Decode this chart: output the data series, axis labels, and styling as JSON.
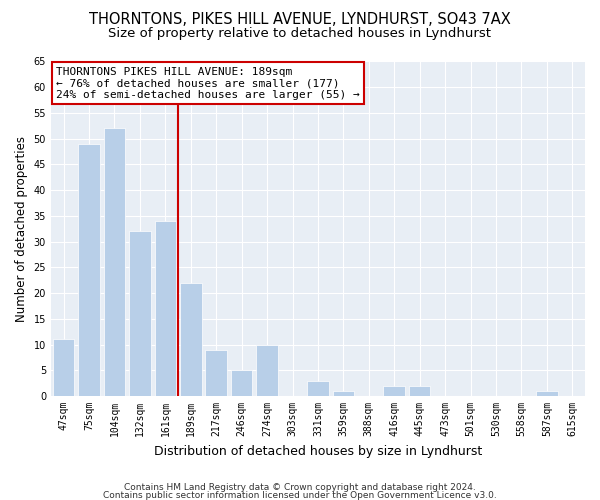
{
  "title1": "THORNTONS, PIKES HILL AVENUE, LYNDHURST, SO43 7AX",
  "title2": "Size of property relative to detached houses in Lyndhurst",
  "xlabel": "Distribution of detached houses by size in Lyndhurst",
  "ylabel": "Number of detached properties",
  "bar_labels": [
    "47sqm",
    "75sqm",
    "104sqm",
    "132sqm",
    "161sqm",
    "189sqm",
    "217sqm",
    "246sqm",
    "274sqm",
    "303sqm",
    "331sqm",
    "359sqm",
    "388sqm",
    "416sqm",
    "445sqm",
    "473sqm",
    "501sqm",
    "530sqm",
    "558sqm",
    "587sqm",
    "615sqm"
  ],
  "bar_values": [
    11,
    49,
    52,
    32,
    34,
    22,
    9,
    5,
    10,
    0,
    3,
    1,
    0,
    2,
    2,
    0,
    0,
    0,
    0,
    1,
    0
  ],
  "bar_color": "#b8cfe8",
  "bar_edge_color": "#ffffff",
  "highlight_index": 5,
  "highlight_line_color": "#cc0000",
  "annotation_line1": "THORNTONS PIKES HILL AVENUE: 189sqm",
  "annotation_line2": "← 76% of detached houses are smaller (177)",
  "annotation_line3": "24% of semi-detached houses are larger (55) →",
  "annotation_box_color": "#ffffff",
  "annotation_box_edge": "#cc0000",
  "ylim": [
    0,
    65
  ],
  "yticks": [
    0,
    5,
    10,
    15,
    20,
    25,
    30,
    35,
    40,
    45,
    50,
    55,
    60,
    65
  ],
  "plot_bg_color": "#e8eef5",
  "grid_color": "#ffffff",
  "background_color": "#ffffff",
  "footer_line1": "Contains HM Land Registry data © Crown copyright and database right 2024.",
  "footer_line2": "Contains public sector information licensed under the Open Government Licence v3.0.",
  "title1_fontsize": 10.5,
  "title2_fontsize": 9.5,
  "xlabel_fontsize": 9,
  "ylabel_fontsize": 8.5,
  "annotation_fontsize": 8,
  "tick_fontsize": 7,
  "footer_fontsize": 6.5
}
